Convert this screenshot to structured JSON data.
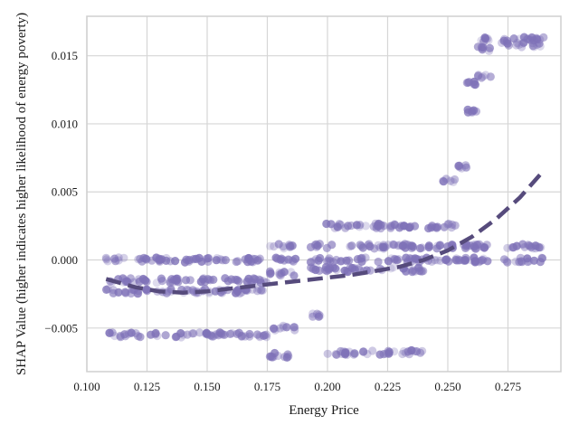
{
  "chart_data": {
    "type": "scatter",
    "xlabel": "Energy Price",
    "ylabel": "SHAP Value (higher indicates higher likelihood of energy poverty)",
    "xlim": [
      0.1,
      0.297
    ],
    "ylim": [
      -0.0082,
      0.0179
    ],
    "x_ticks": [
      0.1,
      0.125,
      0.15,
      0.175,
      0.2,
      0.225,
      0.25,
      0.275
    ],
    "x_tick_labels": [
      "0.100",
      "0.125",
      "0.150",
      "0.175",
      "0.200",
      "0.225",
      "0.250",
      "0.275"
    ],
    "y_ticks": [
      -0.005,
      0.0,
      0.005,
      0.01,
      0.015
    ],
    "y_tick_labels": [
      "−0.005",
      "0.000",
      "0.005",
      "0.010",
      "0.015"
    ],
    "grid": true,
    "colors": {
      "points": "#7f72b8",
      "trend": "#564b7c",
      "grid": "#d6d6d6",
      "frame": "#cfcfcf"
    },
    "point_clusters": [
      {
        "x_range": [
          0.108,
          0.175
        ],
        "y_values": [
          0.0,
          -0.0015,
          -0.0023,
          -0.0055
        ]
      },
      {
        "x_range": [
          0.176,
          0.187
        ],
        "y_values": [
          0.0,
          -0.001,
          -0.007,
          -0.005,
          0.001
        ]
      },
      {
        "x_range": [
          0.193,
          0.197
        ],
        "y_values": [
          0.0,
          0.0011,
          -0.004,
          -0.0007
        ]
      },
      {
        "x_range": [
          0.199,
          0.24
        ],
        "y_values": [
          0.0,
          0.0025,
          0.001,
          -0.0007,
          -0.0068
        ]
      },
      {
        "x_range": [
          0.24,
          0.247
        ],
        "y_values": [
          0.0,
          0.0025,
          0.001
        ]
      },
      {
        "x_range": [
          0.248,
          0.254
        ],
        "y_values": [
          0.0058,
          0.0025,
          0.0,
          0.001
        ]
      },
      {
        "x_range": [
          0.254,
          0.258
        ],
        "y_values": [
          0.0068,
          0.0,
          0.001
        ]
      },
      {
        "x_range": [
          0.258,
          0.262
        ],
        "y_values": [
          0.011,
          0.013,
          0.0,
          0.001
        ]
      },
      {
        "x_range": [
          0.262,
          0.268
        ],
        "y_values": [
          0.0135,
          0.0155,
          0.0162,
          0.0,
          0.001
        ]
      },
      {
        "x_range": [
          0.272,
          0.29
        ],
        "y_values": [
          0.0162,
          0.0158,
          0.001,
          0.0
        ]
      }
    ],
    "trend_line": {
      "style": "dashed",
      "x": [
        0.108,
        0.12,
        0.13,
        0.14,
        0.15,
        0.16,
        0.17,
        0.18,
        0.19,
        0.2,
        0.21,
        0.22,
        0.23,
        0.24,
        0.25,
        0.26,
        0.27,
        0.28,
        0.289
      ],
      "y": [
        -0.0014,
        -0.002,
        -0.0023,
        -0.0024,
        -0.0023,
        -0.0021,
        -0.0019,
        -0.0017,
        -0.0015,
        -0.0013,
        -0.0011,
        -0.0008,
        -0.0005,
        0.0,
        0.0007,
        0.0017,
        0.003,
        0.0046,
        0.0064
      ]
    }
  }
}
